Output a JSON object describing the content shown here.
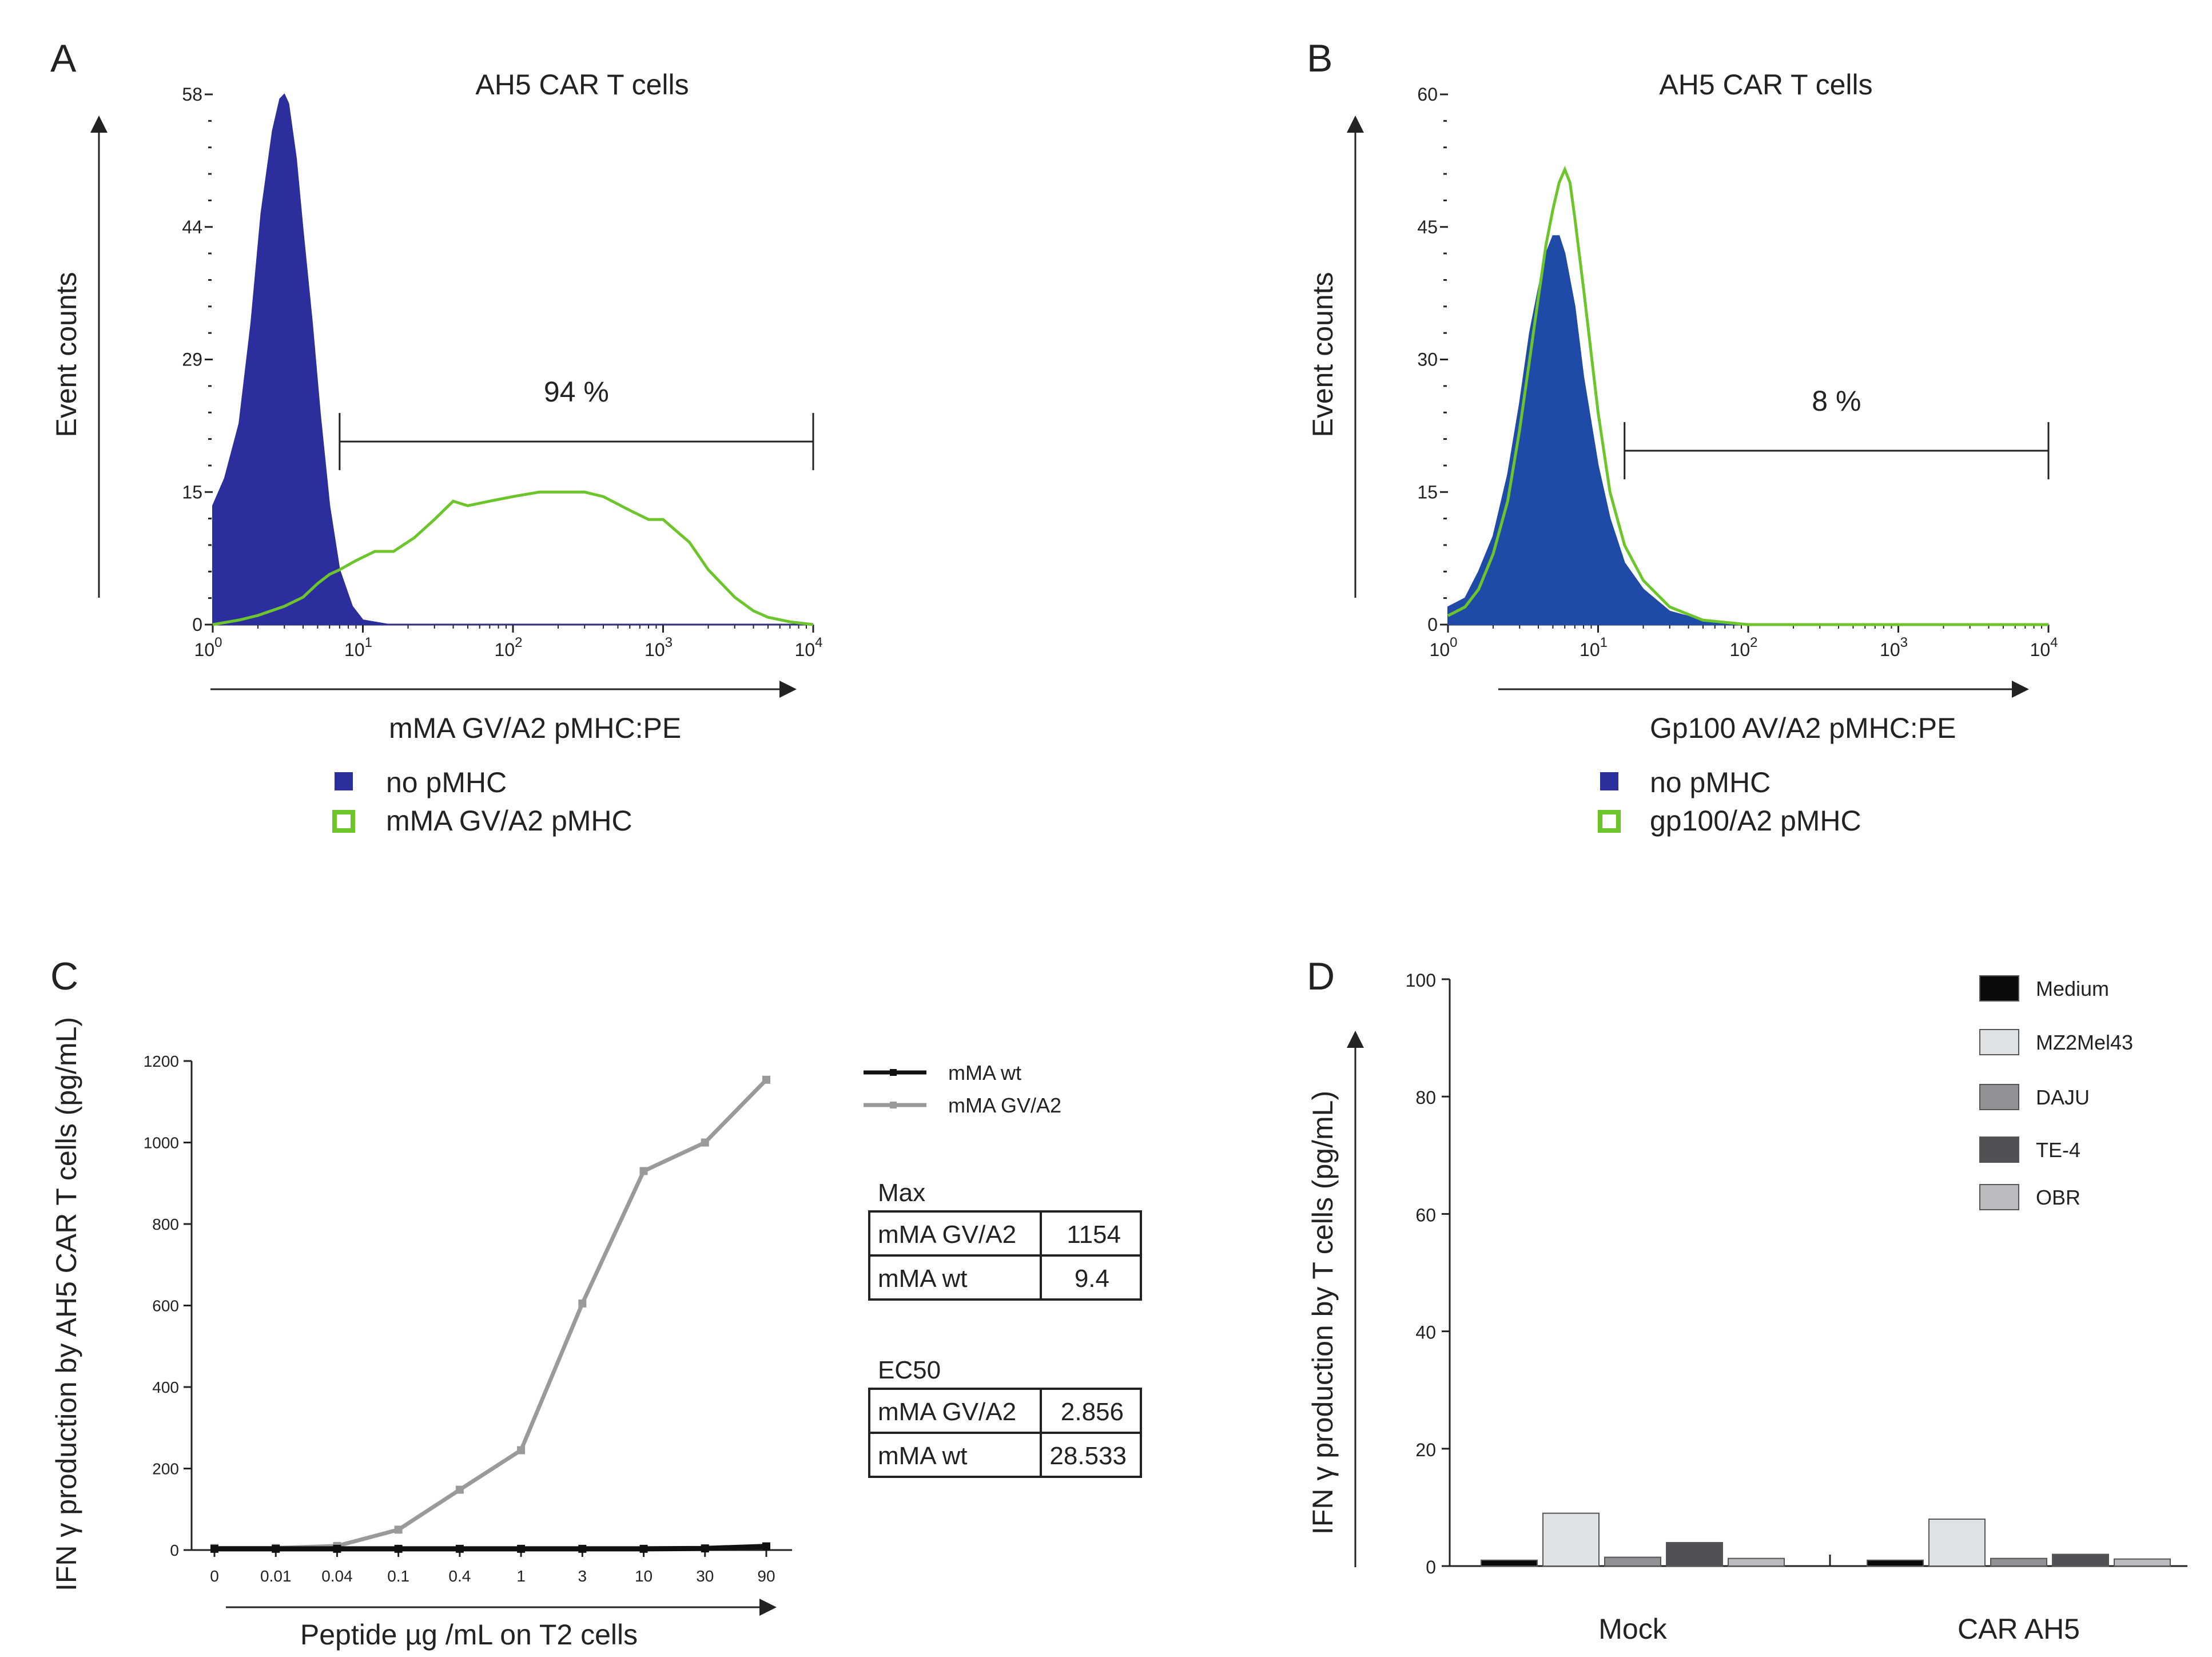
{
  "chart_data": [
    {
      "panel": "A",
      "type": "area",
      "title": "AH5 CAR T cells",
      "xlabel": "mMA GV/A2 pMHC:PE",
      "ylabel": "Event counts",
      "x_scale": "log",
      "xlim": [
        1,
        10000
      ],
      "x_ticks": [
        "10^0",
        "10^1",
        "10^2",
        "10^3",
        "10^4"
      ],
      "ylim": [
        0,
        58
      ],
      "y_ticks": [
        "0",
        "15",
        "29",
        "44",
        "58"
      ],
      "gate_label": "94 %",
      "gate_range": [
        7,
        10000
      ],
      "legend": [
        "no pMHC",
        "mMA GV/A2 pMHC"
      ],
      "series": [
        {
          "name": "no pMHC",
          "style": "filled",
          "color": "#2b2e9c",
          "x": [
            1,
            1.2,
            1.5,
            1.8,
            2.1,
            2.5,
            2.8,
            3.0,
            3.2,
            3.6,
            4.0,
            4.6,
            5.2,
            6.0,
            7.0,
            8.5,
            10,
            15,
            100,
            10000
          ],
          "y": [
            13,
            16,
            22,
            33,
            45,
            54,
            57.5,
            58,
            57,
            51,
            43,
            33,
            23,
            13,
            6,
            2,
            0.5,
            0,
            0,
            0
          ]
        },
        {
          "name": "mMA GV/A2 pMHC",
          "style": "outline",
          "color": "#6cc62b",
          "x": [
            1,
            1.5,
            2,
            3,
            4,
            5,
            6,
            7,
            9,
            12,
            16,
            22,
            30,
            40,
            50,
            70,
            100,
            150,
            200,
            300,
            400,
            600,
            800,
            1000,
            1500,
            2000,
            3000,
            4000,
            5000,
            7000,
            10000
          ],
          "y": [
            0,
            0.5,
            1,
            2,
            3,
            4.5,
            5.5,
            6,
            7,
            8,
            8,
            9.5,
            11.5,
            13.5,
            13,
            13.5,
            14,
            14.5,
            14.5,
            14.5,
            14,
            12.5,
            11.5,
            11.5,
            9,
            6,
            3,
            1.5,
            0.8,
            0.3,
            0
          ]
        }
      ]
    },
    {
      "panel": "B",
      "type": "area",
      "title": "AH5 CAR T cells",
      "xlabel": "Gp100 AV/A2 pMHC:PE",
      "ylabel": "Event counts",
      "x_scale": "log",
      "xlim": [
        1,
        10000
      ],
      "x_ticks": [
        "10^0",
        "10^1",
        "10^2",
        "10^3",
        "10^4"
      ],
      "ylim": [
        0,
        60
      ],
      "y_ticks": [
        "0",
        "15",
        "30",
        "45",
        "60"
      ],
      "gate_label": "8 %",
      "gate_range": [
        15,
        10000
      ],
      "legend": [
        "no pMHC",
        "gp100/A2 pMHC"
      ],
      "series": [
        {
          "name": "no pMHC",
          "style": "filled",
          "color": "#1f4aa8",
          "x": [
            1,
            1.3,
            1.6,
            2,
            2.5,
            3,
            3.5,
            4,
            4.5,
            5,
            5.5,
            6,
            7,
            8,
            10,
            12,
            15,
            20,
            30,
            50,
            100,
            10000
          ],
          "y": [
            2,
            3,
            6,
            10,
            17,
            25,
            33,
            38,
            42,
            44,
            44,
            42,
            36,
            28,
            18,
            12,
            7,
            4,
            1.5,
            0.5,
            0,
            0
          ]
        },
        {
          "name": "gp100/A2 pMHC",
          "style": "outline",
          "color": "#6cc62b",
          "x": [
            1,
            1.3,
            1.6,
            2,
            2.5,
            3,
            3.5,
            4,
            4.5,
            5,
            5.5,
            6,
            6.5,
            7,
            8,
            10,
            12,
            15,
            20,
            30,
            50,
            100,
            10000
          ],
          "y": [
            1,
            2,
            4,
            8,
            14,
            22,
            30,
            37,
            43,
            47,
            50,
            51.5,
            50,
            46,
            38,
            24,
            15,
            9,
            5,
            2,
            0.5,
            0,
            0
          ]
        }
      ]
    },
    {
      "panel": "C",
      "type": "line",
      "xlabel": "Peptide µg /mL on T2 cells",
      "ylabel": "IFN γ production by AH5 CAR T cells (pg/mL)",
      "categories": [
        "0",
        "0.01",
        "0.04",
        "0.1",
        "0.4",
        "1",
        "3",
        "10",
        "30",
        "90"
      ],
      "ylim": [
        0,
        1200
      ],
      "y_ticks": [
        "0",
        "200",
        "400",
        "600",
        "800",
        "1000",
        "1200"
      ],
      "legend": [
        "mMA wt",
        "mMA GV/A2"
      ],
      "series": [
        {
          "name": "mMA wt",
          "color": "#111111",
          "values": [
            3,
            3,
            3,
            3,
            3,
            3,
            3,
            3,
            4,
            9
          ]
        },
        {
          "name": "mMA GV/A2",
          "color": "#9a9a9a",
          "values": [
            5,
            5,
            10,
            50,
            148,
            245,
            605,
            930,
            1000,
            1154
          ]
        }
      ],
      "tables": [
        {
          "title": "Max",
          "rows": [
            [
              "mMA GV/A2",
              "1154"
            ],
            [
              "mMA wt",
              "9.4"
            ]
          ]
        },
        {
          "title": "EC50",
          "rows": [
            [
              "mMA GV/A2",
              "2.856"
            ],
            [
              "mMA wt",
              "28.533"
            ]
          ]
        }
      ]
    },
    {
      "panel": "D",
      "type": "bar",
      "ylabel": "IFN γ production by T cells (pg/mL)",
      "categories": [
        "Mock",
        "CAR AH5"
      ],
      "ylim": [
        0,
        100
      ],
      "y_ticks": [
        "0",
        "20",
        "40",
        "60",
        "80",
        "100"
      ],
      "series": [
        {
          "name": "Medium",
          "color": "#0a0a0a",
          "values": [
            1,
            1
          ]
        },
        {
          "name": "MZ2Mel43",
          "color": "#dfe2e4",
          "values": [
            9,
            8
          ]
        },
        {
          "name": "DAJU",
          "color": "#8f9194",
          "values": [
            1.5,
            1.3
          ]
        },
        {
          "name": "TE-4",
          "color": "#4f5154",
          "values": [
            4,
            2
          ]
        },
        {
          "name": "OBR",
          "color": "#b9bbbe",
          "values": [
            1.3,
            1.2
          ]
        }
      ]
    }
  ]
}
